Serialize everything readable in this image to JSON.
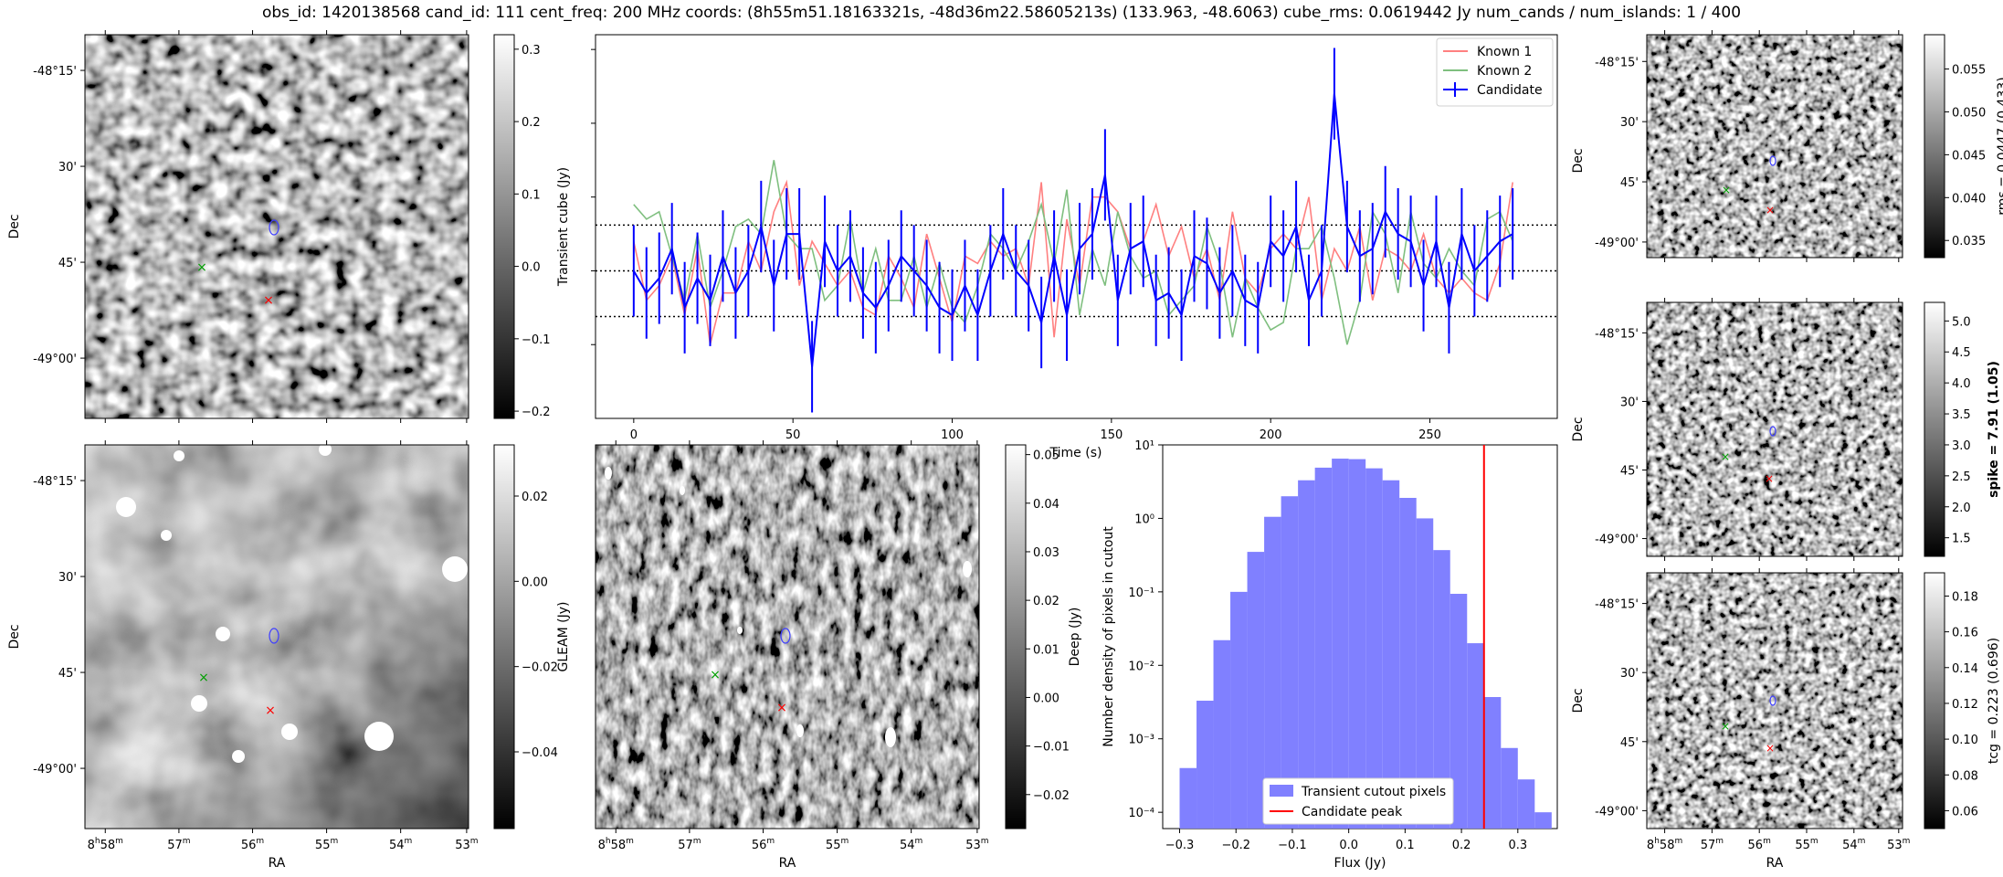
{
  "title": "obs_id: 1420138568 cand_id: 111 cent_freq: 200 MHz coords: (8h55m51.18163321s, -48d36m22.58605213s) (133.963, -48.6063) cube_rms: 0.0619442 Jy num_cands / num_islands: 1 / 400",
  "sky": {
    "dec_ticks": [
      "-48°15'",
      "30'",
      "45'",
      "-49°00'"
    ],
    "ra_ticks": [
      {
        "h": "8",
        "m": "58"
      },
      {
        "h": "",
        "m": "57"
      },
      {
        "h": "",
        "m": "56"
      },
      {
        "h": "",
        "m": "55"
      },
      {
        "h": "",
        "m": "54"
      },
      {
        "h": "",
        "m": "53"
      }
    ],
    "dec_label": "Dec",
    "ra_label": "RA",
    "ra_unit_h": "h",
    "ra_unit_m": "m"
  },
  "colorbars": {
    "transient": {
      "label": "Transient cube (Jy)",
      "ticks": [
        "0.3",
        "0.2",
        "0.1",
        "0.0",
        "−0.1",
        "−0.2"
      ],
      "range": [
        -0.21,
        0.32
      ],
      "values": [
        0.3,
        0.2,
        0.1,
        0.0,
        -0.1,
        -0.2
      ]
    },
    "gleam": {
      "label": "GLEAM (Jy)",
      "ticks": [
        "0.02",
        "0.00",
        "−0.02",
        "−0.04"
      ],
      "range": [
        -0.058,
        0.032
      ],
      "values": [
        0.02,
        0.0,
        -0.02,
        -0.04
      ]
    },
    "deep": {
      "label": "Deep (Jy)",
      "ticks": [
        "0.05",
        "0.04",
        "0.03",
        "0.02",
        "0.01",
        "0.00",
        "−0.01",
        "−0.02"
      ],
      "range": [
        -0.027,
        0.052
      ],
      "values": [
        0.05,
        0.04,
        0.03,
        0.02,
        0.01,
        0.0,
        -0.01,
        -0.02
      ]
    },
    "rms": {
      "label": "rms = 0.0447 (0.433)",
      "ticks": [
        "0.055",
        "0.050",
        "0.045",
        "0.040",
        "0.035"
      ],
      "range": [
        0.033,
        0.059
      ],
      "values": [
        0.055,
        0.05,
        0.045,
        0.04,
        0.035
      ]
    },
    "spike": {
      "label": "spike = 7.91 (1.05)",
      "ticks": [
        "5.0",
        "4.5",
        "4.0",
        "3.5",
        "3.0",
        "2.5",
        "2.0",
        "1.5"
      ],
      "range": [
        1.2,
        5.3
      ],
      "values": [
        5.0,
        4.5,
        4.0,
        3.5,
        3.0,
        2.5,
        2.0,
        1.5
      ]
    },
    "tcg": {
      "label": "tcg = 0.223 (0.696)",
      "ticks": [
        "0.18",
        "0.16",
        "0.14",
        "0.12",
        "0.10",
        "0.08",
        "0.06"
      ],
      "range": [
        0.05,
        0.193
      ],
      "values": [
        0.18,
        0.16,
        0.14,
        0.12,
        0.1,
        0.08,
        0.06
      ]
    }
  },
  "chart_data": [
    {
      "type": "line",
      "title": "",
      "xlabel": "Time (s)",
      "ylabel": "",
      "xlim": [
        -12,
        290
      ],
      "ylim": [
        -0.2,
        0.32
      ],
      "xticks": [
        0,
        50,
        100,
        150,
        200,
        250
      ],
      "hlines": [
        0.0619442,
        0.0,
        -0.0619442
      ],
      "legend": [
        "Known 1",
        "Known 2",
        "Candidate"
      ],
      "legend_position": "upper right",
      "series": [
        {
          "name": "Known 1",
          "color": "#ff8080",
          "start": 0,
          "step": 4,
          "values": [
            0.04,
            -0.04,
            -0.02,
            0.02,
            -0.06,
            0.03,
            -0.1,
            -0.03,
            -0.03,
            0.04,
            0.0,
            0.08,
            0.12,
            -0.02,
            0.04,
            0.01,
            -0.02,
            0.0,
            -0.05,
            -0.06,
            0.02,
            -0.01,
            -0.05,
            0.05,
            -0.01,
            -0.07,
            0.02,
            0.01,
            0.04,
            0.02,
            0.03,
            -0.02,
            0.12,
            -0.09,
            0.07,
            -0.02,
            0.1,
            0.1,
            0.08,
            0.03,
            0.04,
            0.09,
            0.02,
            0.06,
            -0.01,
            0.03,
            -0.04,
            0.08,
            -0.01,
            -0.03,
            0.03,
            0.05,
            0.03,
            0.1,
            -0.04,
            0.03,
            0.0,
            0.06,
            -0.04,
            0.03,
            0.02,
            0.0,
            0.05,
            -0.01,
            -0.03,
            -0.01,
            -0.03,
            -0.04,
            0.01,
            0.12
          ]
        },
        {
          "name": "Known 2",
          "color": "#7fbf7f",
          "start": 0,
          "step": 4,
          "values": [
            0.09,
            0.07,
            0.08,
            0.02,
            -0.04,
            0.05,
            -0.05,
            0.0,
            0.06,
            0.07,
            0.05,
            0.15,
            0.05,
            0.03,
            0.03,
            -0.04,
            -0.02,
            0.07,
            -0.03,
            0.03,
            -0.04,
            -0.04,
            0.02,
            -0.05,
            0.01,
            -0.05,
            -0.07,
            -0.02,
            0.05,
            0.03,
            0.0,
            0.04,
            0.09,
            0.01,
            0.11,
            -0.06,
            0.03,
            -0.02,
            0.08,
            0.02,
            -0.01,
            0.0,
            -0.06,
            -0.04,
            -0.02,
            0.06,
            0.01,
            -0.09,
            -0.01,
            -0.05,
            -0.08,
            -0.07,
            0.03,
            0.03,
            0.06,
            -0.01,
            -0.1,
            -0.04,
            0.08,
            0.05,
            -0.03,
            0.08,
            0.01,
            -0.01,
            0.03,
            0.0,
            -0.02,
            0.07,
            0.08,
            0.04
          ]
        },
        {
          "name": "Candidate",
          "color": "#0000ff",
          "start": 0,
          "step": 4,
          "values": [
            0.0,
            -0.03,
            -0.01,
            0.03,
            -0.05,
            -0.01,
            -0.04,
            0.02,
            -0.03,
            0.0,
            0.06,
            -0.02,
            0.05,
            0.05,
            -0.13,
            0.04,
            0.0,
            0.02,
            -0.03,
            -0.05,
            -0.02,
            0.02,
            0.0,
            -0.02,
            -0.05,
            -0.06,
            -0.02,
            -0.06,
            0.0,
            0.05,
            0.0,
            -0.02,
            -0.07,
            0.02,
            -0.06,
            0.03,
            0.05,
            0.13,
            -0.04,
            0.03,
            0.04,
            -0.04,
            -0.03,
            -0.06,
            0.02,
            0.01,
            -0.03,
            0.0,
            -0.04,
            -0.05,
            0.04,
            0.02,
            0.06,
            -0.04,
            0.0,
            0.24,
            0.06,
            0.02,
            0.03,
            0.08,
            0.05,
            0.04,
            -0.02,
            0.04,
            -0.05,
            0.05,
            0.0,
            0.02,
            0.04,
            0.05
          ],
          "error": 0.062
        }
      ]
    },
    {
      "type": "bar",
      "title": "",
      "xlabel": "Flux (Jy)",
      "ylabel": "Number density of pixels in cutout",
      "yscale": "log",
      "xlim": [
        -0.33,
        0.37
      ],
      "ylim": [
        6e-05,
        10
      ],
      "xticks": [
        -0.3,
        -0.2,
        -0.1,
        0.0,
        0.1,
        0.2,
        0.3
      ],
      "xtick_labels": [
        "−0.3",
        "−0.2",
        "−0.1",
        "0.0",
        "0.1",
        "0.2",
        "0.3"
      ],
      "yticks": [
        0.0001,
        0.001,
        0.01,
        0.1,
        1,
        10
      ],
      "ytick_labels": [
        "10⁻⁴",
        "10⁻³",
        "10⁻²",
        "10⁻¹",
        "10⁰",
        "10¹"
      ],
      "bin_edges": [
        -0.3,
        -0.27,
        -0.24,
        -0.21,
        -0.18,
        -0.15,
        -0.12,
        -0.09,
        -0.06,
        -0.03,
        0.0,
        0.03,
        0.06,
        0.09,
        0.12,
        0.15,
        0.18,
        0.21,
        0.24,
        0.27,
        0.3,
        0.33,
        0.36
      ],
      "values": [
        0.0004,
        0.0033,
        0.022,
        0.1,
        0.35,
        1.05,
        2.0,
        3.3,
        4.9,
        6.5,
        6.4,
        4.8,
        3.3,
        1.9,
        1.0,
        0.37,
        0.094,
        0.02,
        0.0037,
        0.00075,
        0.00028,
        0.0001
      ],
      "vline": 0.24,
      "legend": [
        "Transient cutout pixels",
        "Candidate peak"
      ],
      "legend_position": "lower center",
      "bar_color": "#8080ff",
      "line_color": "#ff0000"
    }
  ]
}
